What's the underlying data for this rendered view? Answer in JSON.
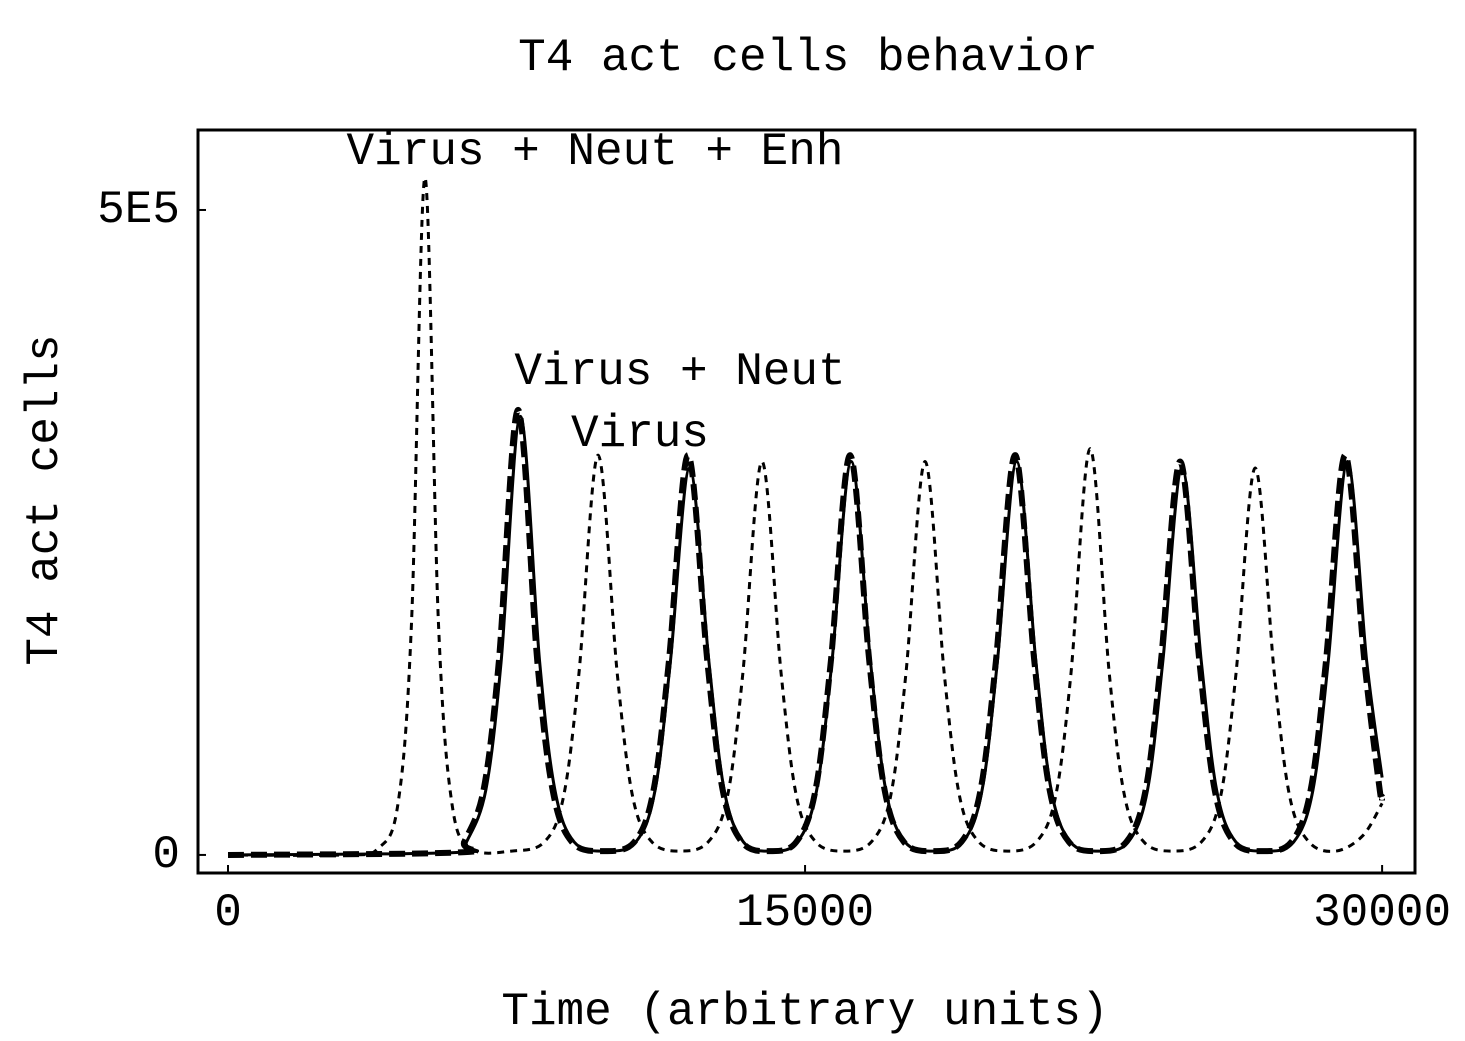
{
  "chart_data": {
    "type": "line",
    "title": "T4 act cells behavior",
    "xlabel": "Time (arbitrary units)",
    "ylabel": "T4 act cells",
    "xlim": [
      -780,
      30855
    ],
    "ylim": [
      -14000,
      562000
    ],
    "xticks": [
      0,
      15000,
      30000
    ],
    "yticks": [
      0,
      {
        "value": 500000,
        "label": "5E5"
      }
    ],
    "series": [
      {
        "name": "Virus + Neut + Enh",
        "color": "#000000",
        "dash": "7 6",
        "width": 3,
        "x": [
          0,
          3000,
          3900,
          4420,
          4770,
          5120,
          5470,
          5820,
          6320,
          7370,
          8220,
          8720,
          9120,
          9620,
          10120,
          10520,
          11020,
          11750,
          12480,
          12980,
          13380,
          13880,
          14380,
          14780,
          15280,
          16000,
          16720,
          17220,
          17620,
          18120,
          18620,
          19020,
          19520,
          20265,
          21010,
          21510,
          21910,
          22410,
          22910,
          23310,
          23810,
          24555,
          25300,
          25800,
          26200,
          26700,
          27200,
          27600,
          28100,
          28800,
          29500,
          30000
        ],
        "values": [
          0,
          0,
          5000,
          40000,
          180000,
          525000,
          180000,
          40000,
          5000,
          3000,
          10000,
          45000,
          140000,
          310000,
          140000,
          45000,
          10000,
          3000,
          10000,
          45000,
          140000,
          305000,
          140000,
          45000,
          10000,
          3000,
          10000,
          45000,
          140000,
          305000,
          140000,
          45000,
          10000,
          3000,
          10000,
          45000,
          140000,
          315000,
          140000,
          45000,
          10000,
          3000,
          10000,
          45000,
          140000,
          300000,
          140000,
          45000,
          10000,
          3000,
          15000,
          40000
        ]
      },
      {
        "name": "Virus + Neut",
        "color": "#000000",
        "dash": "16 7",
        "width": 6,
        "x": [
          0,
          6000,
          6140,
          6640,
          7040,
          7540,
          8040,
          8440,
          8940,
          9750,
          10560,
          11060,
          11460,
          11960,
          12460,
          12860,
          13360,
          14065,
          14770,
          15270,
          15670,
          16170,
          16670,
          17070,
          17570,
          18315,
          19060,
          19560,
          19960,
          20460,
          20960,
          21360,
          21860,
          22605,
          23350,
          23850,
          24250,
          24750,
          25250,
          25650,
          26150,
          26895,
          27640,
          28140,
          28540,
          29040,
          29540,
          29940,
          30000
        ],
        "values": [
          0,
          2000,
          10000,
          50000,
          150000,
          345000,
          150000,
          50000,
          10000,
          3000,
          10000,
          50000,
          150000,
          310000,
          150000,
          50000,
          10000,
          3000,
          10000,
          50000,
          150000,
          310000,
          150000,
          50000,
          10000,
          3000,
          10000,
          50000,
          150000,
          310000,
          150000,
          50000,
          10000,
          3000,
          10000,
          50000,
          150000,
          305000,
          150000,
          50000,
          10000,
          3000,
          10000,
          50000,
          150000,
          310000,
          150000,
          50000,
          45000
        ]
      },
      {
        "name": "Virus",
        "color": "#000000",
        "dash": "none",
        "width": 3,
        "x": [
          0,
          6000,
          6200,
          6700,
          7100,
          7600,
          8100,
          8500,
          9000,
          9800,
          10600,
          11100,
          11500,
          12000,
          12500,
          12900,
          13400,
          14100,
          14800,
          15300,
          15700,
          16200,
          16700,
          17100,
          17600,
          18350,
          19100,
          19600,
          20000,
          20500,
          21000,
          21400,
          21900,
          22650,
          23400,
          23900,
          24300,
          24800,
          25300,
          25700,
          26200,
          26950,
          27700,
          28200,
          28600,
          29100,
          29600,
          30000
        ],
        "values": [
          0,
          2000,
          10000,
          50000,
          150000,
          340000,
          150000,
          50000,
          10000,
          3000,
          10000,
          50000,
          150000,
          300000,
          150000,
          50000,
          10000,
          3000,
          10000,
          50000,
          150000,
          305000,
          150000,
          50000,
          10000,
          3000,
          10000,
          50000,
          150000,
          305000,
          150000,
          50000,
          10000,
          3000,
          10000,
          50000,
          150000,
          300000,
          150000,
          50000,
          10000,
          3000,
          10000,
          50000,
          150000,
          305000,
          150000,
          60000
        ]
      }
    ]
  }
}
